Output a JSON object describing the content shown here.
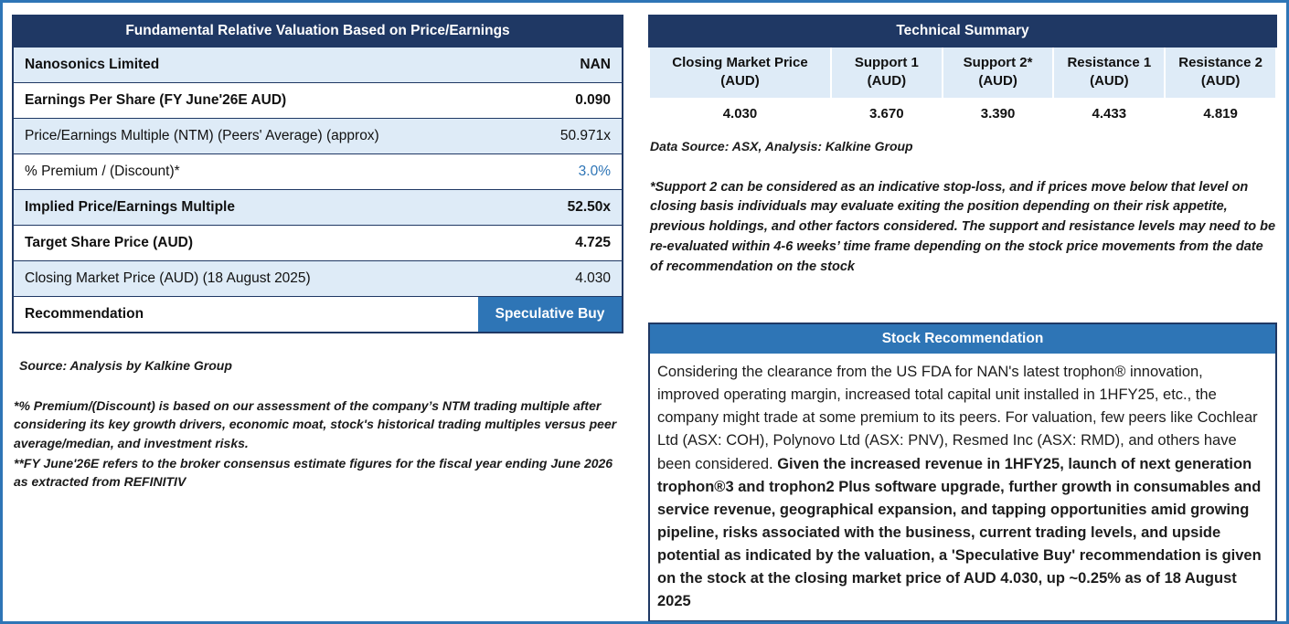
{
  "colors": {
    "header_navy": "#1F3864",
    "accent_blue": "#2E75B6",
    "row_shade_blue": "#DEEBF7",
    "page_border_blue": "#2E75B6"
  },
  "valuation": {
    "title": "Fundamental Relative Valuation Based on Price/Earnings",
    "rows": [
      {
        "label": "Nanosonics Limited",
        "value": "NAN"
      },
      {
        "label": "Earnings Per Share (FY June'26E AUD)",
        "value": "0.090"
      },
      {
        "label": "Price/Earnings Multiple (NTM) (Peers' Average) (approx)",
        "value": "50.971x"
      },
      {
        "label": "% Premium / (Discount)*",
        "value": "3.0%"
      },
      {
        "label": "Implied Price/Earnings Multiple",
        "value": "52.50x"
      },
      {
        "label": "Target Share Price (AUD)",
        "value": "4.725"
      },
      {
        "label": "Closing Market Price (AUD) (18 August 2025)",
        "value": "4.030"
      },
      {
        "label": "Recommendation",
        "value": "Speculative Buy"
      }
    ],
    "source": "Source: Analysis by Kalkine Group",
    "footnote1": "*% Premium/(Discount) is based on our assessment of the company’s NTM trading multiple after considering its key growth drivers, economic moat, stock's historical trading multiples versus peer average/median, and investment risks.",
    "footnote2": "**FY June'26E refers to the broker consensus estimate figures for the fiscal year ending June 2026 as extracted from REFINITIV"
  },
  "technical": {
    "title": "Technical Summary",
    "columns": [
      {
        "header": "Closing Market Price\n(AUD)",
        "value": "4.030"
      },
      {
        "header": "Support 1\n(AUD)",
        "value": "3.670"
      },
      {
        "header": "Support 2*\n(AUD)",
        "value": "3.390"
      },
      {
        "header": "Resistance 1\n(AUD)",
        "value": "4.433"
      },
      {
        "header": "Resistance 2\n(AUD)",
        "value": "4.819"
      }
    ],
    "source": "Data Source: ASX, Analysis: Kalkine Group",
    "footnote": "*Support 2 can be considered as an indicative stop-loss, and if prices move below that level on closing basis individuals may evaluate exiting the position depending on their risk appetite, previous holdings, and other factors considered. The support and resistance levels may need to be re-evaluated within 4-6 weeks’ time frame depending on the stock price movements from the date of recommendation on the stock"
  },
  "recommendation": {
    "title": "Stock Recommendation",
    "body_normal": "Considering the clearance from the US FDA for NAN's latest trophon® innovation, improved operating margin, increased  total capital unit installed in 1HFY25, etc., the company might trade at some premium to its peers. For valuation, few peers like Cochlear Ltd (ASX: COH), Polynovo Ltd (ASX: PNV), Resmed Inc (ASX: RMD), and others have been considered. ",
    "body_bold": "Given the increased revenue in 1HFY25, launch of next generation trophon®3 and trophon2 Plus software upgrade, further growth in consumables and service revenue, geographical expansion, and tapping opportunities amid growing pipeline, risks associated with the business, current trading levels, and upside potential as indicated by the valuation, a 'Speculative Buy' recommendation is given on the stock at the closing market price of AUD 4.030, up ~0.25% as of 18 August 2025"
  }
}
